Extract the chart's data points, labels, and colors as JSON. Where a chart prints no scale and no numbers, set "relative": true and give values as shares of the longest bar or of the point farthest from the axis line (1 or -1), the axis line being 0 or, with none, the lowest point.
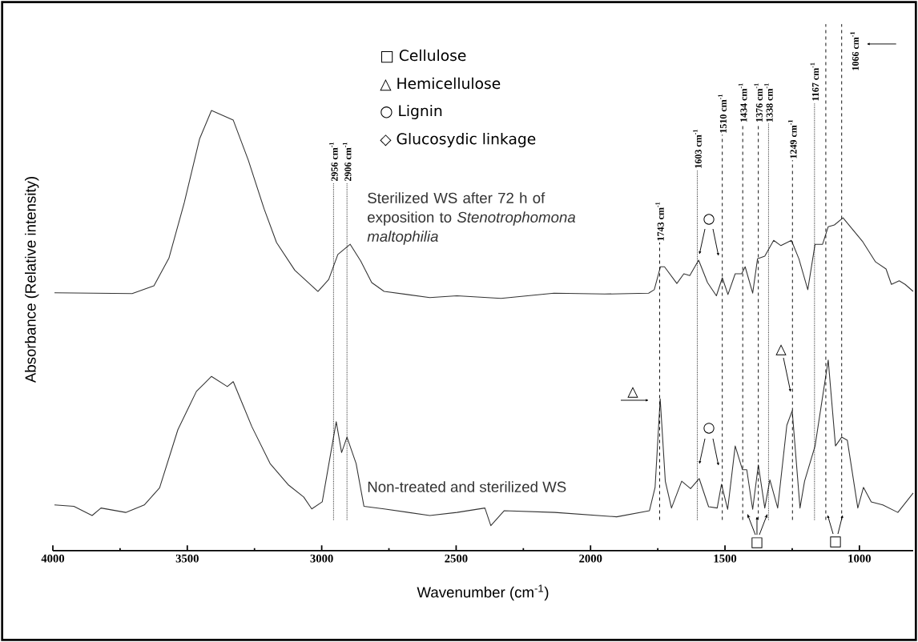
{
  "chart_data": {
    "type": "line",
    "relative": true,
    "marker": "none",
    "xlabel": "Wavenumber (cm$^{-1}$)",
    "ylabel": "Absorbance (Relative intensity)",
    "xlim": [
      4000,
      800
    ],
    "xticks": [
      4000,
      {
        "value": 3750,
        "label": null
      },
      3500,
      {
        "value": 3250,
        "label": null
      },
      3000,
      {
        "value": 2750,
        "label": null
      },
      2500,
      {
        "value": 2250,
        "label": null
      },
      2000,
      {
        "value": 1750,
        "label": null
      },
      1500,
      {
        "value": 1250,
        "label": null
      },
      1000
    ],
    "series": [
      {
        "name": "Sterilized WS after 72 h of exposition to *Stenotrophomona maltophilia*",
        "color": "#333333",
        "x": [
          3994,
          3705,
          3624,
          3568,
          3511,
          3454,
          3410,
          3329,
          3273,
          3214,
          3168,
          3100,
          3014,
          2974,
          2940,
          2894,
          2855,
          2814,
          2768,
          2598,
          2497,
          2333,
          2136,
          1948,
          1784,
          1763,
          1740,
          1725,
          1679,
          1653,
          1631,
          1598,
          1565,
          1532,
          1510,
          1489,
          1462,
          1438,
          1425,
          1397,
          1379,
          1352,
          1319,
          1292,
          1253,
          1225,
          1192,
          1165,
          1137,
          1116,
          1093,
          1061,
          989,
          940,
          901,
          881,
          852,
          830,
          800
        ],
        "values": [
          0.586,
          0.584,
          0.602,
          0.665,
          0.791,
          0.936,
          1.0,
          0.978,
          0.887,
          0.776,
          0.7,
          0.637,
          0.589,
          0.616,
          0.673,
          0.696,
          0.658,
          0.609,
          0.589,
          0.575,
          0.579,
          0.573,
          0.585,
          0.583,
          0.585,
          0.593,
          0.645,
          0.645,
          0.607,
          0.629,
          0.625,
          0.66,
          0.609,
          0.579,
          0.62,
          0.582,
          0.629,
          0.629,
          0.645,
          0.585,
          0.663,
          0.669,
          0.705,
          0.693,
          0.705,
          0.663,
          0.593,
          0.696,
          0.696,
          0.736,
          0.74,
          0.756,
          0.703,
          0.656,
          0.64,
          0.605,
          0.613,
          0.605,
          0.589
        ]
      },
      {
        "name": "Non-treated and sterilized WS",
        "color": "#333333",
        "x": [
          3994,
          3922,
          3854,
          3821,
          3729,
          3660,
          3603,
          3535,
          3466,
          3410,
          3351,
          3329,
          3293,
          3260,
          3192,
          3123,
          3067,
          3037,
          2998,
          2946,
          2926,
          2906,
          2872,
          2843,
          2768,
          2598,
          2497,
          2393,
          2371,
          2321,
          2133,
          1903,
          1781,
          1760,
          1741,
          1722,
          1699,
          1661,
          1628,
          1596,
          1561,
          1529,
          1513,
          1490,
          1462,
          1435,
          1419,
          1397,
          1376,
          1352,
          1333,
          1304,
          1270,
          1250,
          1221,
          1204,
          1165,
          1116,
          1089,
          1066,
          1045,
          1006,
          985,
          956,
          913,
          857,
          800
        ],
        "values": [
          0.104,
          0.101,
          0.08,
          0.097,
          0.087,
          0.104,
          0.143,
          0.275,
          0.362,
          0.396,
          0.373,
          0.384,
          0.331,
          0.282,
          0.198,
          0.149,
          0.122,
          0.095,
          0.111,
          0.293,
          0.223,
          0.258,
          0.198,
          0.101,
          0.095,
          0.08,
          0.087,
          0.097,
          0.057,
          0.091,
          0.087,
          0.077,
          0.091,
          0.144,
          0.345,
          0.158,
          0.097,
          0.158,
          0.141,
          0.164,
          0.1,
          0.097,
          0.151,
          0.094,
          0.238,
          0.184,
          0.184,
          0.094,
          0.195,
          0.097,
          0.161,
          0.097,
          0.285,
          0.318,
          0.097,
          0.158,
          0.238,
          0.433,
          0.238,
          0.258,
          0.251,
          0.097,
          0.144,
          0.111,
          0.104,
          0.087,
          0.131
        ]
      }
    ],
    "ref_lines": [
      {
        "axis": "x",
        "value": 2956,
        "label": "2956 cm$^{-1}$",
        "line_style": "dotted"
      },
      {
        "axis": "x",
        "value": 2906,
        "label": "2906 cm$^{-1}$",
        "line_style": "dotted"
      },
      {
        "axis": "x",
        "value": 1743,
        "label": "1743 cm$^{-1}$",
        "line_style": "dashed"
      },
      {
        "axis": "x",
        "value": 1603,
        "label": "1603 cm$^{-1}$",
        "line_style": "dotted"
      },
      {
        "axis": "x",
        "value": 1510,
        "label": "1510 cm$^{-1}$",
        "line_style": "dashed"
      },
      {
        "axis": "x",
        "value": 1434,
        "label": "1434 cm$^{-1}$",
        "line_style": "dashed"
      },
      {
        "axis": "x",
        "value": 1376,
        "label": "1376 cm$^{-1}$",
        "line_style": "dashed"
      },
      {
        "axis": "x",
        "value": 1338,
        "label": "1338 cm$^{-1}$",
        "line_style": "dotted"
      },
      {
        "axis": "x",
        "value": 1249,
        "label": "1249 cm$^{-1}$",
        "line_style": "dashed"
      },
      {
        "axis": "x",
        "value": 1167,
        "label": "1167 cm$^{-1}$",
        "line_style": "dotted"
      },
      {
        "axis": "x",
        "value": 1125,
        "line_style": "dashed"
      },
      {
        "axis": "x",
        "value": 1066,
        "label": "1066 cm$^{-1}$",
        "line_style": "dashed"
      }
    ],
    "annotations": [
      "□ Cellulose",
      "△ Hemicellulose",
      "○ Lignin",
      "◇ Glucosydic linkage",
      "△",
      "○",
      "△",
      "□",
      "□",
      "○"
    ]
  }
}
